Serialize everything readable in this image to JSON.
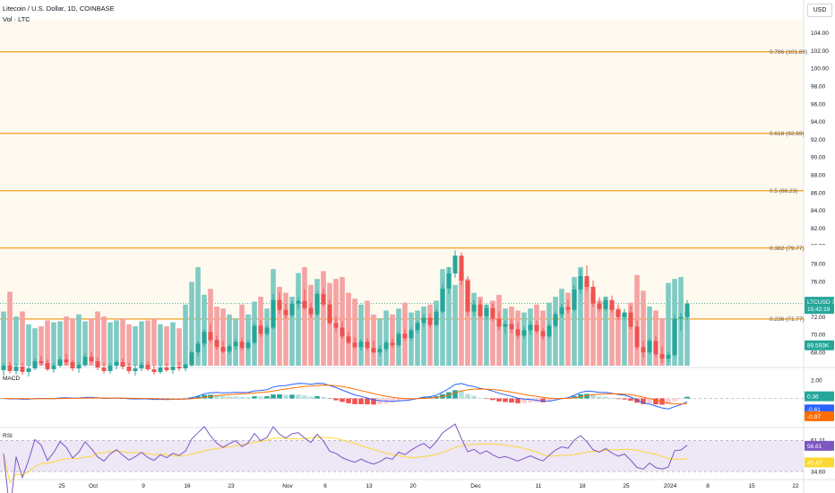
{
  "header": {
    "symbol_line": "Litecoin / U.S. Dollar, 1D, COINBASE",
    "volume_label": "Vol · LTC",
    "currency_button": "USD"
  },
  "colors": {
    "up": "#26a69a",
    "down": "#ef5350",
    "vol_up": "#80cbc4",
    "vol_down": "#f5a3a3",
    "fib_line": "#f59d1b",
    "fib_bg": "#fffaf0",
    "macd_line": "#2962ff",
    "signal_line": "#ff6d00",
    "rsi_line": "#7e57c2",
    "rsi_ma": "#fdd835",
    "rsi_band": "#ede7f6"
  },
  "chart_data": {
    "type": "candlestick",
    "title": "Litecoin / U.S. Dollar, 1D, COINBASE",
    "price_axis": {
      "ticks": [
        "104.00",
        "102.00",
        "100.00",
        "98.00",
        "96.00",
        "94.00",
        "92.00",
        "90.00",
        "88.00",
        "86.00",
        "84.00",
        "82.00",
        "80.00",
        "78.00",
        "76.00",
        "74.00",
        "72.00",
        "70.00",
        "68.00"
      ],
      "ylim": [
        66.5,
        105.5
      ]
    },
    "x_ticks": [
      {
        "label": "25",
        "i": 5
      },
      {
        "label": "Oct",
        "i": 10
      },
      {
        "label": "9",
        "i": 18
      },
      {
        "label": "16",
        "i": 25
      },
      {
        "label": "23",
        "i": 32
      },
      {
        "label": "Nov",
        "i": 41
      },
      {
        "label": "6",
        "i": 47
      },
      {
        "label": "13",
        "i": 54
      },
      {
        "label": "20",
        "i": 61
      },
      {
        "label": "Dec",
        "i": 71
      },
      {
        "label": "11",
        "i": 81
      },
      {
        "label": "18",
        "i": 88
      },
      {
        "label": "25",
        "i": 95
      },
      {
        "label": "2024",
        "i": 102
      },
      {
        "label": "8",
        "i": 108
      },
      {
        "label": "15",
        "i": 115
      },
      {
        "label": "22",
        "i": 122
      }
    ],
    "fib_levels": [
      {
        "label": "0.786 (101.89)",
        "value": 101.89
      },
      {
        "label": "0.618 (92.69)",
        "value": 92.69
      },
      {
        "label": "0.5 (86.23)",
        "value": 86.23
      },
      {
        "label": "0.382 (79.77)",
        "value": 79.77
      },
      {
        "label": "0.236 (71.77)",
        "value": 71.77
      }
    ],
    "last_price": {
      "symbol": "LTCUSD",
      "price": "73.51",
      "countdown": "15:42:19",
      "value": 73.51
    },
    "high_marker": {
      "label": "High",
      "price": "79.54",
      "value": 79.54
    },
    "volume_tag": {
      "value": "89.593K"
    },
    "candles": [
      [
        66.0,
        66.8,
        65.4,
        66.5
      ],
      [
        66.5,
        66.9,
        65.6,
        65.9
      ],
      [
        65.9,
        66.7,
        65.5,
        66.4
      ],
      [
        66.4,
        66.8,
        65.5,
        65.8
      ],
      [
        65.8,
        66.6,
        65.3,
        66.2
      ],
      [
        66.2,
        67.3,
        66.0,
        67.0
      ],
      [
        67.0,
        67.6,
        66.5,
        66.8
      ],
      [
        66.8,
        67.2,
        65.9,
        66.1
      ],
      [
        66.1,
        66.8,
        65.7,
        66.5
      ],
      [
        66.5,
        67.5,
        66.3,
        67.2
      ],
      [
        67.2,
        67.8,
        66.6,
        66.9
      ],
      [
        66.9,
        67.2,
        65.9,
        66.2
      ],
      [
        66.2,
        66.9,
        65.7,
        66.6
      ],
      [
        66.6,
        67.9,
        66.4,
        67.5
      ],
      [
        67.5,
        68.0,
        66.8,
        67.0
      ],
      [
        67.0,
        67.4,
        66.0,
        66.3
      ],
      [
        66.3,
        66.8,
        65.6,
        65.9
      ],
      [
        65.9,
        66.8,
        65.6,
        66.5
      ],
      [
        66.5,
        67.2,
        66.1,
        66.9
      ],
      [
        66.9,
        67.3,
        66.1,
        66.4
      ],
      [
        66.4,
        66.8,
        65.6,
        65.9
      ],
      [
        65.9,
        66.6,
        65.4,
        66.2
      ],
      [
        66.2,
        66.9,
        65.9,
        66.6
      ],
      [
        66.6,
        67.0,
        65.9,
        66.1
      ],
      [
        66.1,
        66.5,
        65.5,
        65.8
      ],
      [
        65.8,
        66.6,
        65.6,
        66.3
      ],
      [
        66.3,
        66.8,
        65.8,
        66.0
      ],
      [
        66.0,
        66.6,
        65.6,
        66.4
      ],
      [
        66.4,
        66.9,
        65.9,
        66.2
      ],
      [
        66.2,
        66.8,
        65.9,
        66.6
      ],
      [
        66.6,
        68.2,
        66.4,
        68.0
      ],
      [
        68.0,
        69.3,
        67.6,
        69.0
      ],
      [
        69.0,
        70.6,
        68.6,
        70.3
      ],
      [
        70.3,
        71.2,
        69.1,
        69.4
      ],
      [
        69.4,
        69.9,
        68.3,
        68.6
      ],
      [
        68.6,
        69.3,
        67.9,
        68.1
      ],
      [
        68.1,
        69.0,
        67.8,
        68.7
      ],
      [
        68.7,
        69.5,
        68.3,
        69.2
      ],
      [
        69.2,
        69.6,
        68.2,
        68.5
      ],
      [
        68.5,
        69.4,
        68.3,
        69.1
      ],
      [
        69.1,
        71.3,
        68.9,
        71.0
      ],
      [
        71.0,
        71.6,
        69.8,
        70.1
      ],
      [
        70.1,
        71.1,
        69.8,
        70.8
      ],
      [
        70.8,
        74.6,
        70.6,
        73.9
      ],
      [
        73.9,
        74.8,
        72.4,
        72.8
      ],
      [
        72.8,
        73.5,
        71.8,
        72.2
      ],
      [
        72.2,
        73.8,
        71.9,
        73.5
      ],
      [
        73.5,
        74.2,
        72.9,
        73.8
      ],
      [
        73.8,
        75.1,
        72.8,
        73.0
      ],
      [
        73.0,
        73.6,
        71.9,
        72.3
      ],
      [
        72.3,
        74.9,
        72.1,
        74.6
      ],
      [
        74.6,
        75.2,
        73.1,
        73.4
      ],
      [
        73.4,
        73.9,
        71.1,
        71.3
      ],
      [
        71.3,
        72.0,
        70.4,
        70.8
      ],
      [
        70.8,
        71.5,
        69.5,
        69.8
      ],
      [
        69.8,
        70.3,
        68.9,
        69.1
      ],
      [
        69.1,
        69.7,
        68.4,
        68.6
      ],
      [
        68.6,
        69.5,
        68.2,
        69.2
      ],
      [
        69.2,
        69.6,
        68.2,
        68.5
      ],
      [
        68.5,
        69.3,
        67.9,
        68.0
      ],
      [
        68.0,
        68.8,
        67.6,
        68.4
      ],
      [
        68.4,
        69.4,
        68.1,
        69.1
      ],
      [
        69.1,
        69.6,
        68.5,
        68.8
      ],
      [
        68.8,
        70.4,
        68.6,
        70.1
      ],
      [
        70.1,
        70.6,
        69.3,
        69.6
      ],
      [
        69.6,
        70.8,
        69.3,
        70.5
      ],
      [
        70.5,
        71.6,
        70.1,
        71.3
      ],
      [
        71.3,
        72.3,
        70.9,
        71.9
      ],
      [
        71.9,
        72.4,
        70.8,
        71.1
      ],
      [
        71.1,
        72.9,
        70.9,
        72.6
      ],
      [
        72.6,
        75.8,
        72.4,
        75.2
      ],
      [
        75.2,
        77.6,
        74.6,
        76.9
      ],
      [
        76.9,
        79.5,
        76.4,
        78.9
      ],
      [
        78.9,
        79.3,
        75.6,
        76.1
      ],
      [
        76.1,
        76.6,
        72.2,
        72.6
      ],
      [
        72.6,
        73.9,
        72.1,
        73.4
      ],
      [
        73.4,
        74.0,
        71.8,
        72.1
      ],
      [
        72.1,
        73.4,
        71.6,
        73.0
      ],
      [
        73.0,
        73.5,
        71.5,
        71.8
      ],
      [
        71.8,
        72.6,
        70.5,
        70.9
      ],
      [
        70.9,
        71.6,
        70.1,
        71.2
      ],
      [
        71.2,
        71.8,
        70.2,
        70.6
      ],
      [
        70.6,
        71.3,
        69.6,
        69.9
      ],
      [
        69.9,
        70.9,
        69.5,
        70.5
      ],
      [
        70.5,
        71.5,
        70.0,
        71.1
      ],
      [
        71.1,
        71.6,
        70.1,
        70.4
      ],
      [
        70.4,
        70.8,
        69.4,
        69.8
      ],
      [
        69.8,
        71.3,
        69.6,
        71.0
      ],
      [
        71.0,
        72.6,
        70.8,
        72.3
      ],
      [
        72.3,
        73.5,
        71.9,
        73.1
      ],
      [
        73.1,
        73.9,
        72.4,
        72.8
      ],
      [
        72.8,
        75.6,
        72.6,
        75.1
      ],
      [
        75.1,
        77.4,
        74.6,
        76.6
      ],
      [
        76.6,
        77.8,
        74.9,
        75.4
      ],
      [
        75.4,
        76.1,
        73.1,
        73.5
      ],
      [
        73.5,
        74.2,
        72.6,
        72.9
      ],
      [
        72.9,
        74.3,
        72.7,
        73.9
      ],
      [
        73.9,
        74.4,
        72.5,
        72.8
      ],
      [
        72.8,
        73.4,
        71.6,
        72.0
      ],
      [
        72.0,
        72.9,
        71.6,
        72.5
      ],
      [
        72.5,
        73.2,
        70.6,
        70.9
      ],
      [
        70.9,
        71.6,
        68.3,
        68.6
      ],
      [
        68.6,
        69.3,
        67.4,
        68.0
      ],
      [
        68.0,
        69.6,
        67.8,
        69.3
      ],
      [
        69.3,
        69.8,
        67.5,
        67.8
      ],
      [
        67.8,
        68.6,
        66.8,
        67.3
      ],
      [
        67.3,
        68.1,
        66.9,
        67.7
      ],
      [
        67.7,
        72.3,
        67.5,
        71.8
      ],
      [
        71.8,
        72.4,
        70.4,
        72.0
      ],
      [
        72.0,
        73.9,
        71.6,
        73.51
      ]
    ],
    "volume": [
      0.55,
      0.75,
      0.5,
      0.55,
      0.42,
      0.38,
      0.4,
      0.46,
      0.44,
      0.45,
      0.5,
      0.48,
      0.52,
      0.45,
      0.48,
      0.55,
      0.5,
      0.44,
      0.46,
      0.48,
      0.42,
      0.4,
      0.45,
      0.46,
      0.48,
      0.42,
      0.4,
      0.44,
      0.38,
      0.62,
      0.85,
      1.0,
      0.72,
      0.78,
      0.6,
      0.58,
      0.52,
      0.48,
      0.62,
      0.52,
      0.65,
      0.7,
      0.58,
      0.98,
      0.8,
      0.74,
      0.7,
      0.94,
      1.0,
      0.82,
      0.88,
      0.96,
      0.84,
      0.88,
      0.9,
      0.74,
      0.68,
      0.62,
      0.66,
      0.52,
      0.48,
      0.56,
      0.52,
      0.58,
      0.64,
      0.54,
      0.56,
      0.6,
      0.62,
      0.66,
      0.98,
      1.0,
      0.82,
      0.96,
      0.88,
      0.74,
      0.7,
      0.62,
      0.66,
      0.72,
      0.58,
      0.6,
      0.56,
      0.54,
      0.58,
      0.62,
      0.56,
      0.64,
      0.7,
      0.78,
      0.74,
      0.9,
      1.0,
      0.86,
      0.74,
      0.66,
      0.7,
      0.62,
      0.58,
      0.52,
      0.64,
      0.92,
      0.76,
      0.6,
      0.56,
      0.48,
      0.84,
      0.88,
      0.9,
      0.56
    ],
    "macd": {
      "label": "MACD",
      "ticks": [
        "2.00",
        "0.00",
        "-2.00"
      ],
      "ylim": [
        -3.0,
        3.0
      ],
      "tags": {
        "hist": "0.36",
        "macd": "-0.61",
        "signal": "-0.97"
      }
    },
    "rsi": {
      "label": "RSI",
      "ticks": [
        "61.21",
        "34.60"
      ],
      "ylim": [
        30.0,
        70.0
      ],
      "upper": 61.21,
      "lower": 34.6,
      "tags": {
        "rsi": "56.61",
        "ma": "45.47"
      }
    }
  }
}
